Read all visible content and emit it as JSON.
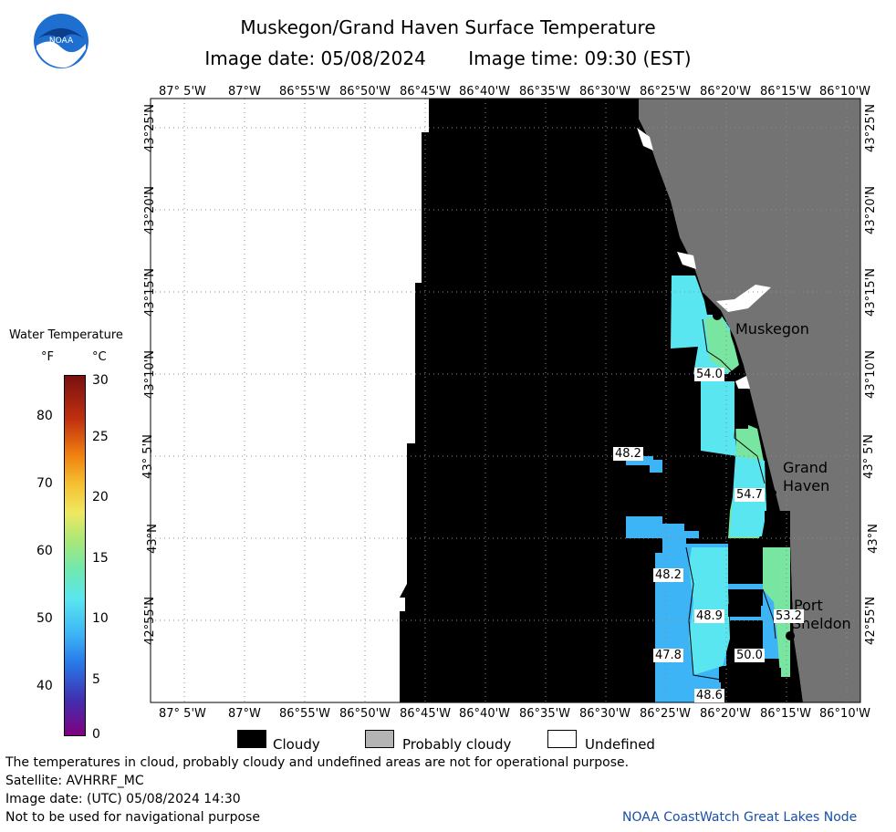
{
  "header": {
    "title": "Muskegon/Grand Haven Surface Temperature",
    "image_date": "Image date: 05/08/2024",
    "image_time": "Image time: 09:30 (EST)"
  },
  "logo": {
    "text": "NOAA"
  },
  "axes": {
    "lon_labels": [
      "87° 5'W",
      "87°W",
      "86°55'W",
      "86°50'W",
      "86°45'W",
      "86°40'W",
      "86°35'W",
      "86°30'W",
      "86°25'W",
      "86°20'W",
      "86°15'W",
      "86°10'W"
    ],
    "lat_labels": [
      "43°25'N",
      "43°20'N",
      "43°15'N",
      "43°10'N",
      "43° 5'N",
      "43°N",
      "42°55'N"
    ]
  },
  "legend": {
    "title": "Water Temperature",
    "unit_f": "°F",
    "unit_c": "°C",
    "f_ticks": [
      "80",
      "70",
      "60",
      "50",
      "40"
    ],
    "c_ticks": [
      "30",
      "25",
      "20",
      "15",
      "10",
      "5",
      "0"
    ]
  },
  "places": {
    "muskegon": "Muskegon",
    "grand_haven_1": "Grand",
    "grand_haven_2": "Haven",
    "port_sheldon_1": "Port",
    "port_sheldon_2": "Sheldon"
  },
  "temps": {
    "t1": "54.0",
    "t2": "48.2",
    "t3": "54.7",
    "t4": "48.2",
    "t5": "48.9",
    "t6": "53.2",
    "t7": "47.8",
    "t8": "50.0",
    "t9": "48.6"
  },
  "key": {
    "cloudy": "Cloudy",
    "probably_cloudy": "Probably cloudy",
    "undefined": "Undefined"
  },
  "footer": {
    "line1": "The temperatures in cloud, probably cloudy and undefined areas are not for operational purpose.",
    "line2": "Satellite: AVHRRF_MC",
    "line3": "Image date: (UTC) 05/08/2024  14:30",
    "line4": "Not to be used for navigational purpose",
    "credit": "NOAA CoastWatch Great Lakes Node"
  },
  "colors": {
    "cloudy": "#000000",
    "probably_cloudy": "#b4b4b4",
    "land": "#737373",
    "water_cyan": "#5ae6f0",
    "water_blue": "#3cb4f5",
    "water_green": "#78e6a0"
  }
}
